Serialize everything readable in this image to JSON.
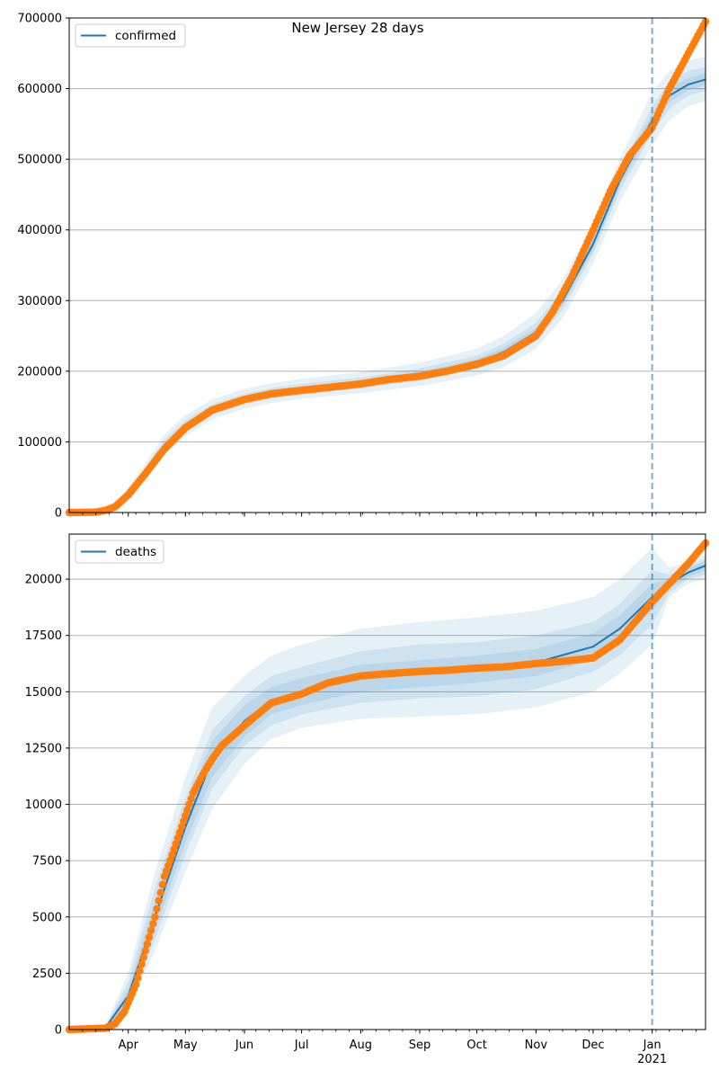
{
  "title": "New Jersey 28 days",
  "colors": {
    "model": "#1f77b4",
    "observed": "#ff7f0e",
    "band": "#1f77b4",
    "grid": "#b0b0b0"
  },
  "x_axis": {
    "ticks": [
      "Apr",
      "May",
      "Jun",
      "Jul",
      "Aug",
      "Sep",
      "Oct",
      "Nov",
      "Dec",
      "Jan"
    ],
    "year_label": "2021",
    "range": [
      "2020-03-01",
      "2021-01-29"
    ],
    "forecast_start": "2021-01-01"
  },
  "chart_data": [
    {
      "type": "line",
      "id": "confirmed",
      "legend": [
        "confirmed"
      ],
      "legend_position": "top-left",
      "grid": "horizontal",
      "ylim": [
        0,
        700000
      ],
      "yticks": [
        "0",
        "100000",
        "200000",
        "300000",
        "400000",
        "500000",
        "600000",
        "700000"
      ],
      "ytick_values": [
        0,
        100000,
        200000,
        300000,
        400000,
        500000,
        600000,
        700000
      ],
      "observed": {
        "x": [
          "2020-03-01",
          "2020-03-15",
          "2020-03-20",
          "2020-03-25",
          "2020-04-01",
          "2020-04-10",
          "2020-04-20",
          "2020-05-01",
          "2020-05-15",
          "2020-06-01",
          "2020-06-15",
          "2020-07-01",
          "2020-07-15",
          "2020-08-01",
          "2020-08-15",
          "2020-09-01",
          "2020-09-15",
          "2020-10-01",
          "2020-10-15",
          "2020-11-01",
          "2020-11-10",
          "2020-11-20",
          "2020-12-01",
          "2020-12-10",
          "2020-12-20",
          "2021-01-01",
          "2021-01-10",
          "2021-01-20",
          "2021-01-29"
        ],
        "y": [
          0,
          500,
          3000,
          8000,
          25000,
          55000,
          90000,
          120000,
          145000,
          160000,
          168000,
          173000,
          177000,
          182000,
          188000,
          193000,
          200000,
          210000,
          222000,
          250000,
          285000,
          335000,
          400000,
          455000,
          505000,
          545000,
          600000,
          650000,
          695000
        ]
      },
      "model": {
        "x": [
          "2020-03-01",
          "2020-03-15",
          "2020-03-25",
          "2020-04-05",
          "2020-04-20",
          "2020-05-01",
          "2020-05-15",
          "2020-06-01",
          "2020-06-15",
          "2020-07-01",
          "2020-08-01",
          "2020-09-01",
          "2020-10-01",
          "2020-10-15",
          "2020-11-01",
          "2020-11-15",
          "2020-12-01",
          "2020-12-15",
          "2021-01-01",
          "2021-01-10",
          "2021-01-20",
          "2021-01-29"
        ],
        "y": [
          0,
          500,
          8000,
          40000,
          95000,
          122000,
          145000,
          160000,
          168000,
          174000,
          183000,
          195000,
          212000,
          227000,
          255000,
          300000,
          380000,
          470000,
          555000,
          590000,
          606000,
          613000
        ]
      },
      "bands": [
        {
          "level": "outer",
          "lower": [
            0,
            0,
            5000,
            32000,
            82000,
            108000,
            132000,
            147000,
            155000,
            161000,
            169000,
            179000,
            194000,
            206000,
            232000,
            275000,
            352000,
            440000,
            520000,
            555000,
            575000,
            582000
          ],
          "upper": [
            0,
            1000,
            12000,
            50000,
            110000,
            138000,
            160000,
            175000,
            183000,
            189000,
            199000,
            212000,
            232000,
            250000,
            282000,
            330000,
            410000,
            500000,
            595000,
            625000,
            640000,
            645000
          ]
        },
        {
          "level": "middle",
          "lower": [
            0,
            200,
            6500,
            36000,
            88000,
            114000,
            138000,
            153000,
            161000,
            167000,
            176000,
            187000,
            203000,
            216000,
            243000,
            287000,
            366000,
            455000,
            537000,
            572000,
            590000,
            597000
          ],
          "upper": [
            0,
            800,
            10000,
            45000,
            103000,
            131000,
            153000,
            168000,
            176000,
            182000,
            191000,
            204000,
            222000,
            239000,
            268000,
            315000,
            396000,
            485000,
            575000,
            610000,
            625000,
            631000
          ]
        },
        {
          "level": "inner",
          "lower": [
            0,
            300,
            7200,
            38000,
            91000,
            118000,
            141000,
            156000,
            164000,
            170000,
            179000,
            191000,
            207000,
            221000,
            249000,
            293000,
            372000,
            462000,
            546000,
            581000,
            598000,
            605000
          ],
          "upper": [
            0,
            700,
            9000,
            43000,
            99000,
            127000,
            149000,
            164000,
            172000,
            178000,
            187000,
            199000,
            217000,
            233000,
            261000,
            307000,
            388000,
            477000,
            565000,
            600000,
            615000,
            622000
          ]
        }
      ]
    },
    {
      "type": "line",
      "id": "deaths",
      "legend": [
        "deaths"
      ],
      "legend_position": "top-left",
      "grid": "horizontal",
      "ylim": [
        0,
        22000
      ],
      "yticks": [
        "0",
        "2500",
        "5000",
        "7500",
        "10000",
        "12500",
        "15000",
        "17500",
        "20000"
      ],
      "ytick_values": [
        0,
        2500,
        5000,
        7500,
        10000,
        12500,
        15000,
        17500,
        20000
      ],
      "observed": {
        "x": [
          "2020-03-01",
          "2020-03-20",
          "2020-03-25",
          "2020-03-30",
          "2020-04-05",
          "2020-04-10",
          "2020-04-15",
          "2020-04-20",
          "2020-04-25",
          "2020-05-01",
          "2020-05-05",
          "2020-05-10",
          "2020-05-15",
          "2020-05-20",
          "2020-06-01",
          "2020-06-15",
          "2020-07-01",
          "2020-07-15",
          "2020-08-01",
          "2020-08-15",
          "2020-09-01",
          "2020-09-15",
          "2020-10-01",
          "2020-10-15",
          "2020-11-01",
          "2020-11-15",
          "2020-12-01",
          "2020-12-15",
          "2021-01-01",
          "2021-01-10",
          "2021-01-20",
          "2021-01-29"
        ],
        "y": [
          0,
          60,
          250,
          800,
          2000,
          3500,
          5000,
          6800,
          8000,
          9500,
          10500,
          11300,
          12000,
          12600,
          13500,
          14500,
          14900,
          15400,
          15700,
          15800,
          15900,
          15950,
          16050,
          16100,
          16250,
          16350,
          16500,
          17300,
          19000,
          19800,
          20700,
          21600
        ]
      },
      "model": {
        "x": [
          "2020-03-01",
          "2020-03-20",
          "2020-04-01",
          "2020-04-15",
          "2020-05-01",
          "2020-05-15",
          "2020-06-01",
          "2020-06-15",
          "2020-07-01",
          "2020-08-01",
          "2020-09-01",
          "2020-10-01",
          "2020-11-01",
          "2020-12-01",
          "2020-12-15",
          "2021-01-01",
          "2021-01-10",
          "2021-01-20",
          "2021-01-29"
        ],
        "y": [
          0,
          80,
          1500,
          5000,
          9000,
          12000,
          13700,
          14600,
          15000,
          15600,
          15800,
          16000,
          16300,
          17000,
          17800,
          19200,
          19800,
          20300,
          20600
        ]
      },
      "bands": [
        {
          "level": "outer",
          "lower": [
            0,
            0,
            800,
            3500,
            7000,
            9800,
            11800,
            12900,
            13400,
            13800,
            13900,
            14000,
            14300,
            15000,
            15800,
            17100,
            19200,
            19800,
            20000
          ],
          "upper": [
            0,
            200,
            2500,
            7000,
            11200,
            14300,
            15700,
            16600,
            17100,
            17800,
            18100,
            18300,
            18600,
            19200,
            20000,
            21400,
            20500,
            20800,
            21100
          ]
        },
        {
          "level": "middle",
          "lower": [
            0,
            20,
            1000,
            4000,
            7800,
            10700,
            12600,
            13500,
            14000,
            14500,
            14700,
            14800,
            15100,
            15900,
            16600,
            18000,
            19400,
            20000,
            20200
          ],
          "upper": [
            0,
            150,
            2100,
            6300,
            10300,
            13300,
            14800,
            15700,
            16100,
            16800,
            17100,
            17200,
            17500,
            18100,
            18900,
            20400,
            20200,
            20600,
            20900
          ]
        },
        {
          "level": "inner",
          "lower": [
            0,
            40,
            1200,
            4400,
            8300,
            11200,
            13000,
            14000,
            14400,
            15000,
            15200,
            15400,
            15700,
            16400,
            17200,
            18600,
            19600,
            20100,
            20400
          ],
          "upper": [
            0,
            120,
            1800,
            5700,
            9800,
            12800,
            14400,
            15200,
            15600,
            16200,
            16400,
            16600,
            16900,
            17600,
            18400,
            19800,
            20000,
            20500,
            20800
          ]
        }
      ]
    }
  ]
}
